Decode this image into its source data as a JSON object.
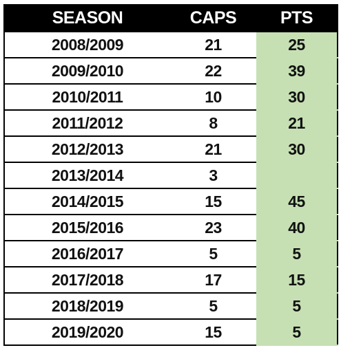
{
  "header": {
    "season": "SEASON",
    "caps": "CAPS",
    "pts": "PTS"
  },
  "rows": [
    {
      "season": "2008/2009",
      "caps": "21",
      "pts": "25"
    },
    {
      "season": "2009/2010",
      "caps": "22",
      "pts": "39"
    },
    {
      "season": "2010/2011",
      "caps": "10",
      "pts": "30"
    },
    {
      "season": "2011/2012",
      "caps": "8",
      "pts": "21"
    },
    {
      "season": "2012/2013",
      "caps": "21",
      "pts": "30"
    },
    {
      "season": "2013/2014",
      "caps": "3",
      "pts": ""
    },
    {
      "season": "2014/2015",
      "caps": "15",
      "pts": "45"
    },
    {
      "season": "2015/2016",
      "caps": "23",
      "pts": "40"
    },
    {
      "season": "2016/2017",
      "caps": "5",
      "pts": "5"
    },
    {
      "season": "2017/2018",
      "caps": "17",
      "pts": "15"
    },
    {
      "season": "2018/2019",
      "caps": "5",
      "pts": "5"
    },
    {
      "season": "2019/2020",
      "caps": "15",
      "pts": "5"
    }
  ],
  "colors": {
    "header_bg": "#000000",
    "header_text": "#ffffff",
    "pts_bg": "#c6e0b4",
    "text": "#111111"
  }
}
